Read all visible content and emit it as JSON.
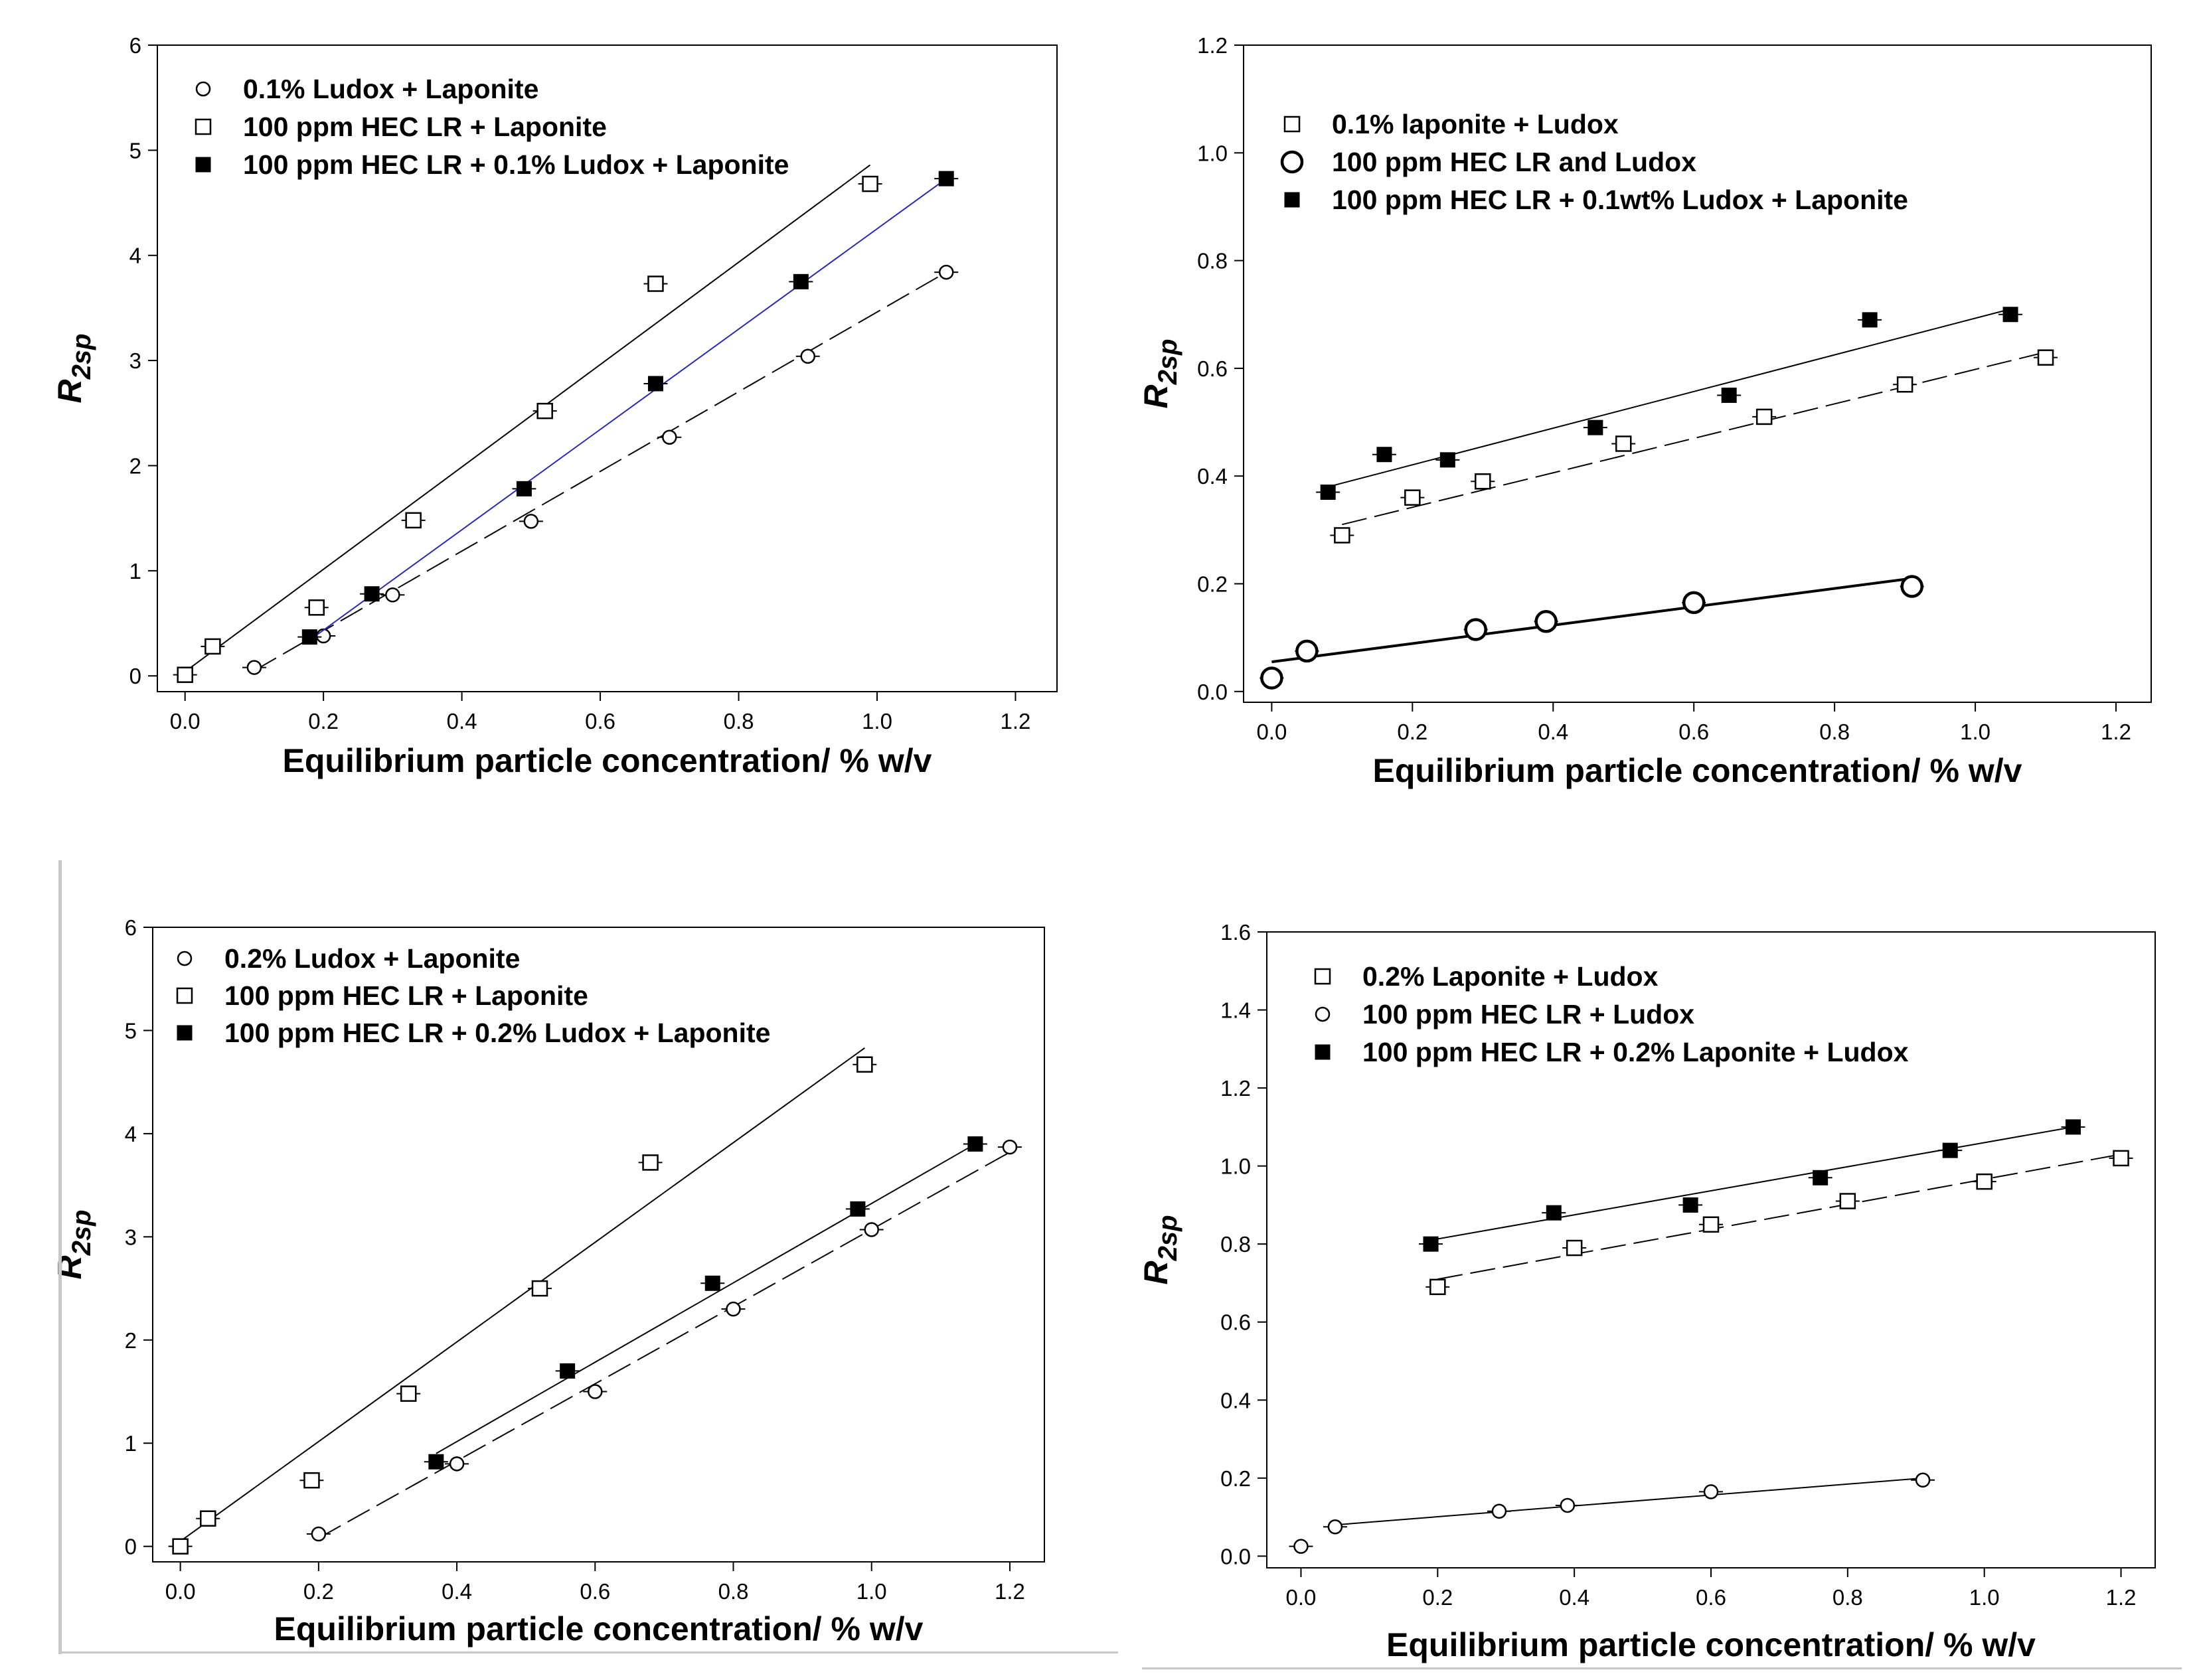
{
  "figure": {
    "panel_count": 4
  },
  "chart_data": [
    {
      "type": "scatter",
      "xlabel": "Equilibrium particle concentration/ % w/v",
      "ylabel": "R",
      "ylabel_sub": "2sp",
      "xlim": [
        -0.04,
        1.26
      ],
      "ylim": [
        -0.15,
        6
      ],
      "xticks": [
        "0.0",
        "0.2",
        "0.4",
        "0.6",
        "0.8",
        "1.0",
        "1.2"
      ],
      "yticks": [
        "0",
        "1",
        "2",
        "3",
        "4",
        "5",
        "6"
      ],
      "series": [
        {
          "name": "0.1% Ludox + Laponite",
          "marker": "circle",
          "x": [
            0.1,
            0.2,
            0.3,
            0.5,
            0.7,
            0.9,
            1.1
          ],
          "y": [
            0.08,
            0.38,
            0.77,
            1.47,
            2.27,
            3.04,
            3.84
          ],
          "fit": {
            "x": [
              0.1,
              1.1
            ],
            "y": [
              0.05,
              3.84
            ],
            "style": "dashed",
            "color": "#000000"
          }
        },
        {
          "name": "100 ppm HEC LR + Laponite",
          "marker": "square-open",
          "x": [
            0.0,
            0.04,
            0.19,
            0.33,
            0.52,
            0.68,
            0.99
          ],
          "y": [
            0.01,
            0.28,
            0.65,
            1.48,
            2.52,
            3.73,
            4.68
          ],
          "fit": {
            "x": [
              0.0,
              0.99
            ],
            "y": [
              0.04,
              4.86
            ],
            "style": "solid",
            "color": "#000000"
          }
        },
        {
          "name": "100 ppm HEC LR + 0.1% Ludox + Laponite",
          "marker": "square-filled",
          "x": [
            0.18,
            0.27,
            0.49,
            0.68,
            0.89,
            1.1
          ],
          "y": [
            0.37,
            0.78,
            1.78,
            2.78,
            3.75,
            4.73
          ],
          "fit": {
            "x": [
              0.18,
              1.1
            ],
            "y": [
              0.34,
              4.73
            ],
            "style": "solid",
            "color": "#2b2bb0"
          }
        }
      ]
    },
    {
      "type": "scatter",
      "xlabel": "Equilibrium particle concentration/ % w/v",
      "ylabel": "R",
      "ylabel_sub": "2sp",
      "xlim": [
        -0.04,
        1.25
      ],
      "ylim": [
        -0.02,
        1.2
      ],
      "xticks": [
        "0.0",
        "0.2",
        "0.4",
        "0.6",
        "0.8",
        "1.0",
        "1.2"
      ],
      "yticks": [
        "0.0",
        "0.2",
        "0.4",
        "0.6",
        "0.8",
        "1.0",
        "1.2"
      ],
      "series": [
        {
          "name": "0.1% laponite + Ludox",
          "marker": "square-open",
          "x": [
            0.1,
            0.2,
            0.3,
            0.5,
            0.7,
            0.9,
            1.1
          ],
          "y": [
            0.29,
            0.36,
            0.39,
            0.46,
            0.51,
            0.57,
            0.62
          ],
          "fit": {
            "x": [
              0.1,
              1.1
            ],
            "y": [
              0.31,
              0.63
            ],
            "style": "dashed",
            "color": "#000000"
          }
        },
        {
          "name": "100 ppm HEC LR and Ludox",
          "marker": "circle-large",
          "x": [
            0.0,
            0.05,
            0.29,
            0.39,
            0.6,
            0.91
          ],
          "y": [
            0.025,
            0.075,
            0.115,
            0.13,
            0.165,
            0.195
          ],
          "fit": {
            "x": [
              0.0,
              0.91
            ],
            "y": [
              0.055,
              0.21
            ],
            "style": "solid",
            "color": "#000000"
          }
        },
        {
          "name": "100 ppm HEC LR + 0.1wt% Ludox + Laponite",
          "marker": "square-filled",
          "x": [
            0.08,
            0.16,
            0.25,
            0.46,
            0.65,
            0.85,
            1.05
          ],
          "y": [
            0.37,
            0.44,
            0.43,
            0.49,
            0.55,
            0.69,
            0.7
          ],
          "fit": {
            "x": [
              0.08,
              1.05
            ],
            "y": [
              0.38,
              0.71
            ],
            "style": "solid",
            "color": "#000000"
          }
        }
      ]
    },
    {
      "type": "scatter",
      "xlabel": "Equilibrium particle concentration/ % w/v",
      "ylabel": "R",
      "ylabel_sub": "2sp",
      "xlim": [
        -0.04,
        1.25
      ],
      "ylim": [
        -0.15,
        6
      ],
      "xticks": [
        "0.0",
        "0.2",
        "0.4",
        "0.6",
        "0.8",
        "1.0",
        "1.2"
      ],
      "yticks": [
        "0",
        "1",
        "2",
        "3",
        "4",
        "5",
        "6"
      ],
      "series": [
        {
          "name": "0.2% Ludox + Laponite",
          "marker": "circle",
          "x": [
            0.2,
            0.4,
            0.6,
            0.8,
            1.0,
            1.2
          ],
          "y": [
            0.12,
            0.8,
            1.5,
            2.3,
            3.07,
            3.87
          ],
          "fit": {
            "x": [
              0.2,
              1.2
            ],
            "y": [
              0.08,
              3.82
            ],
            "style": "dashed",
            "color": "#000000"
          }
        },
        {
          "name": "100 ppm HEC LR + Laponite",
          "marker": "square-open",
          "x": [
            0.0,
            0.04,
            0.19,
            0.33,
            0.52,
            0.68,
            0.99
          ],
          "y": [
            0.0,
            0.27,
            0.64,
            1.48,
            2.5,
            3.72,
            4.67
          ],
          "fit": {
            "x": [
              0.0,
              0.99
            ],
            "y": [
              0.05,
              4.83
            ],
            "style": "solid",
            "color": "#000000"
          }
        },
        {
          "name": "100 ppm HEC LR + 0.2% Ludox + Laponite",
          "marker": "square-filled",
          "x": [
            0.37,
            0.56,
            0.77,
            0.98,
            1.15
          ],
          "y": [
            0.82,
            1.7,
            2.55,
            3.27,
            3.9
          ],
          "fit": {
            "x": [
              0.37,
              1.15
            ],
            "y": [
              0.9,
              3.9
            ],
            "style": "solid",
            "color": "#000000"
          }
        }
      ]
    },
    {
      "type": "scatter",
      "xlabel": "Equilibrium particle concentration/ % w/v",
      "ylabel": "R",
      "ylabel_sub": "2sp",
      "xlim": [
        -0.05,
        1.25
      ],
      "ylim": [
        -0.03,
        1.6
      ],
      "xticks": [
        "0.0",
        "0.2",
        "0.4",
        "0.6",
        "0.8",
        "1.0",
        "1.2"
      ],
      "yticks": [
        "0.0",
        "0.2",
        "0.4",
        "0.6",
        "0.8",
        "1.0",
        "1.2",
        "1.4",
        "1.6"
      ],
      "series": [
        {
          "name": "0.2% Laponite + Ludox",
          "marker": "square-open",
          "x": [
            0.2,
            0.4,
            0.6,
            0.8,
            1.0,
            1.2
          ],
          "y": [
            0.69,
            0.79,
            0.85,
            0.91,
            0.96,
            1.02
          ],
          "fit": {
            "x": [
              0.2,
              1.2
            ],
            "y": [
              0.71,
              1.03
            ],
            "style": "dashed",
            "color": "#000000"
          }
        },
        {
          "name": "100 ppm HEC LR + Ludox",
          "marker": "circle",
          "x": [
            0.0,
            0.05,
            0.29,
            0.39,
            0.6,
            0.91
          ],
          "y": [
            0.025,
            0.075,
            0.115,
            0.13,
            0.165,
            0.195
          ],
          "fit": {
            "x": [
              0.05,
              0.91
            ],
            "y": [
              0.08,
              0.2
            ],
            "style": "solid",
            "color": "#000000"
          }
        },
        {
          "name": "100 ppm HEC LR + 0.2% Laponite + Ludox",
          "marker": "square-filled",
          "x": [
            0.19,
            0.37,
            0.57,
            0.76,
            0.95,
            1.13
          ],
          "y": [
            0.8,
            0.88,
            0.9,
            0.97,
            1.04,
            1.1
          ],
          "fit": {
            "x": [
              0.19,
              1.13
            ],
            "y": [
              0.81,
              1.1
            ],
            "style": "solid",
            "color": "#000000"
          }
        }
      ]
    }
  ]
}
